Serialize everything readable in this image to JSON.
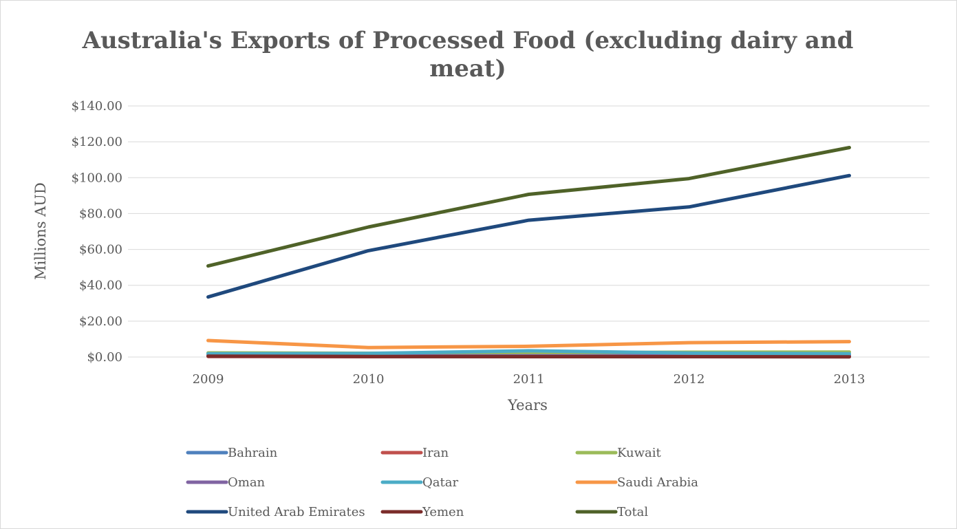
{
  "chart_data": {
    "type": "line",
    "title": "Australia's Exports of Processed Food (excluding dairy and meat)",
    "title_lines": [
      "Australia's Exports of Processed Food (excluding dairy and",
      "meat)"
    ],
    "xlabel": "Years",
    "ylabel": "Millions AUD",
    "categories": [
      "2009",
      "2010",
      "2011",
      "2012",
      "2013"
    ],
    "y_ticks": [
      "$0.00",
      "$20.00",
      "$40.00",
      "$60.00",
      "$80.00",
      "$100.00",
      "$120.00",
      "$140.00"
    ],
    "ylim": [
      0,
      140
    ],
    "grid": true,
    "legend_position": "bottom",
    "series": [
      {
        "name": "Bahrain",
        "color": "#4f81bd",
        "values": [
          1.5,
          1.4,
          1.2,
          1.0,
          1.0
        ]
      },
      {
        "name": "Iran",
        "color": "#c0504d",
        "values": [
          0.3,
          0.2,
          0.3,
          0.2,
          0.2
        ]
      },
      {
        "name": "Kuwait",
        "color": "#9bbb59",
        "values": [
          2.3,
          2.1,
          2.4,
          2.7,
          2.8
        ]
      },
      {
        "name": "Oman",
        "color": "#8064a2",
        "values": [
          0.8,
          0.6,
          0.7,
          0.7,
          0.8
        ]
      },
      {
        "name": "Qatar",
        "color": "#4bacc6",
        "values": [
          1.8,
          2.0,
          3.5,
          2.2,
          1.8
        ]
      },
      {
        "name": "Saudi Arabia",
        "color": "#f79646",
        "values": [
          9.2,
          5.3,
          6.0,
          8.0,
          8.6
        ]
      },
      {
        "name": "United Arab Emirates",
        "color": "#1f497d",
        "values": [
          33.5,
          59.3,
          76.3,
          83.7,
          101.2
        ]
      },
      {
        "name": "Yemen",
        "color": "#7b2c2a",
        "values": [
          0.5,
          0.3,
          0.2,
          0.2,
          0.1
        ]
      },
      {
        "name": "Total",
        "color": "#4f6228",
        "values": [
          50.8,
          72.5,
          90.7,
          99.5,
          116.8
        ]
      }
    ]
  }
}
